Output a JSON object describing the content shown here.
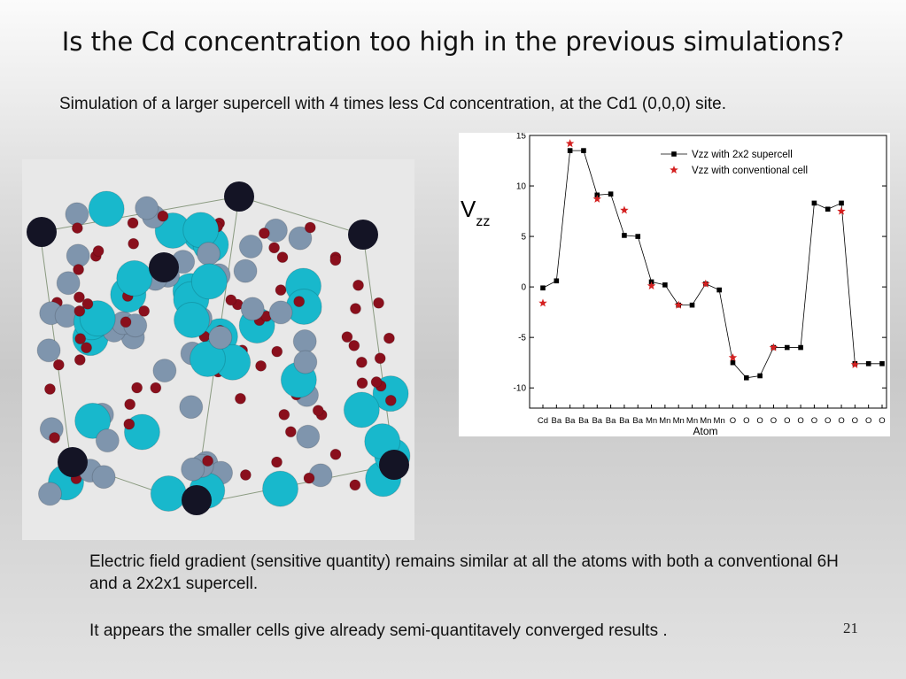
{
  "slide": {
    "title": "Is the Cd concentration too high in the previous simulations?",
    "subtitle": "Simulation of a larger supercell with 4 times less Cd concentration, at the Cd1 (0,0,0) site.",
    "body": [
      "Electric field gradient (sensitive quantity) remains similar at all the atoms with both a conventional 6H and a 2x2x1 supercell.",
      "It appears the smaller cells give already semi-quantitavely converged  results ."
    ],
    "page_number": "21"
  },
  "chart_data": {
    "type": "line",
    "x_label": "Atom",
    "y_label": "V",
    "y_label_sub": "zz",
    "categories": [
      "Cd",
      "Ba",
      "Ba",
      "Ba",
      "Ba",
      "Ba",
      "Ba",
      "Ba",
      "Mn",
      "Mn",
      "Mn",
      "Mn",
      "Mn",
      "Mn",
      "O",
      "O",
      "O",
      "O",
      "O",
      "O",
      "O",
      "O",
      "O",
      "O",
      "O",
      "O"
    ],
    "series": [
      {
        "name": "Vzz with 2x2 supercell",
        "color": "#000000",
        "marker": "square",
        "line": true,
        "values": [
          -0.1,
          0.6,
          13.5,
          13.5,
          9.1,
          9.2,
          5.1,
          5.0,
          0.5,
          0.2,
          -1.8,
          -1.8,
          0.3,
          -0.3,
          -7.5,
          -9.0,
          -8.8,
          -6.0,
          -6.0,
          -6.0,
          8.3,
          7.7,
          8.3,
          -7.6,
          -7.6,
          -7.6
        ]
      },
      {
        "name": "Vzz with conventional  cell",
        "color": "#d42020",
        "marker": "star",
        "line": false,
        "values": [
          -1.6,
          null,
          14.2,
          null,
          8.7,
          null,
          7.6,
          null,
          0.1,
          null,
          -1.8,
          null,
          0.3,
          null,
          -7.0,
          null,
          null,
          -6.0,
          null,
          null,
          null,
          null,
          7.5,
          -7.7,
          null,
          null
        ]
      }
    ],
    "ylim": [
      -12,
      15
    ],
    "yticks": [
      -10,
      -5,
      0,
      5,
      10,
      15
    ],
    "legend": "top-right"
  }
}
